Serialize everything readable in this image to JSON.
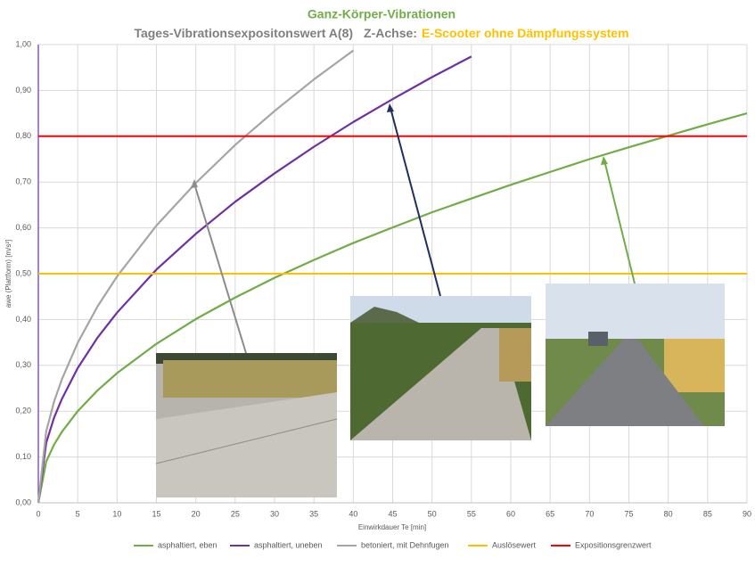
{
  "chart_data": {
    "type": "line",
    "title": "Ganz-Körper-Vibrationen",
    "subtitle": "Tages-Vibrationsexpositonswert A(8)",
    "axis_note": "Z-Achse:",
    "vehicle": "E-Scooter ohne Dämpfungssystem",
    "x_label": "Einwirkdauer Te [min]",
    "y_label": "awe (Plattform) [m/s²]",
    "x": [
      0,
      1,
      2,
      3,
      5,
      7.5,
      10,
      15,
      20,
      25,
      30,
      35,
      40,
      45,
      50,
      55,
      60,
      65,
      70,
      75,
      80,
      85,
      90
    ],
    "series": [
      {
        "name": "asphaltiert, eben",
        "color": "#70ad47",
        "values": [
          0,
          0.09,
          0.127,
          0.155,
          0.2,
          0.245,
          0.283,
          0.347,
          0.401,
          0.448,
          0.491,
          0.53,
          0.567,
          0.601,
          0.634,
          0.664,
          0.694,
          0.722,
          0.75,
          0.776,
          0.801,
          0.826,
          0.85
        ]
      },
      {
        "name": "asphaltiert, uneben",
        "color": "#7030a0",
        "values": [
          0,
          0.131,
          0.186,
          0.227,
          0.294,
          0.36,
          0.415,
          0.509,
          0.587,
          0.657,
          0.719,
          0.777,
          0.831,
          0.881,
          0.929,
          0.974,
          null,
          null,
          null,
          null,
          null,
          null,
          null
        ]
      },
      {
        "name": "betoniert, mit Dehnfugen",
        "color": "#a5a5a5",
        "values": [
          0,
          0.156,
          0.221,
          0.27,
          0.349,
          0.428,
          0.494,
          0.605,
          0.698,
          0.781,
          0.855,
          0.924,
          0.987,
          null,
          null,
          null,
          null,
          null,
          null,
          null,
          null,
          null,
          null
        ]
      },
      {
        "name": "Auslösewert",
        "color": "#ffc000",
        "type": "hline",
        "value": 0.5
      },
      {
        "name": "Expositionsgrenzwert",
        "color": "#ff0000",
        "type": "hline",
        "value": 0.8
      }
    ],
    "xlim": [
      0,
      90
    ],
    "xticks": [
      0,
      5,
      10,
      15,
      20,
      25,
      30,
      35,
      40,
      45,
      50,
      55,
      60,
      65,
      70,
      75,
      80,
      85,
      90
    ],
    "ylim": [
      0,
      1
    ],
    "yticks": [
      {
        "value": 0,
        "label": "0,00"
      },
      {
        "value": 0.1,
        "label": "0,10"
      },
      {
        "value": 0.2,
        "label": "0,20"
      },
      {
        "value": 0.3,
        "label": "0,30"
      },
      {
        "value": 0.4,
        "label": "0,40"
      },
      {
        "value": 0.5,
        "label": "0,50"
      },
      {
        "value": 0.6,
        "label": "0,60"
      },
      {
        "value": 0.7,
        "label": "0,70"
      },
      {
        "value": 0.8,
        "label": "0,80"
      },
      {
        "value": 0.9,
        "label": "0,90"
      },
      {
        "value": 1,
        "label": "1,00"
      }
    ],
    "grid": true,
    "legend": "bottom"
  }
}
